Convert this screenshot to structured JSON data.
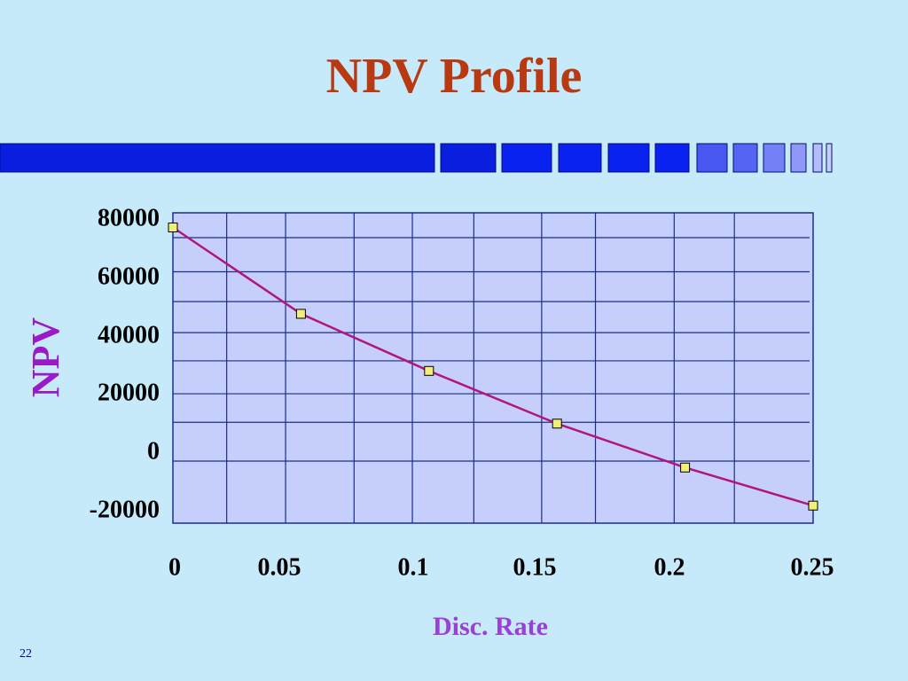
{
  "slide": {
    "title": "NPV Profile",
    "page_number": "22"
  },
  "colors": {
    "title": "#b83a12",
    "axis_title": "#9a19c9",
    "plot_background": "#c6cefc",
    "grid": "#1a2e8c",
    "line": "#b3167a",
    "marker_fill": "#f1ee7a",
    "decoration_primary": "#0a1ee0"
  },
  "chart_data": {
    "type": "line",
    "title": "",
    "xlabel": "Disc. Rate",
    "ylabel": "NPV",
    "x": [
      0,
      0.05,
      0.1,
      0.15,
      0.2,
      0.25
    ],
    "series": [
      {
        "values": [
          75000,
          45500,
          26000,
          8000,
          -7000,
          -20000
        ]
      }
    ],
    "x_ticks": [
      "0",
      "0.05",
      "0.1",
      "0.15",
      "0.2",
      "0.25"
    ],
    "y_ticks": [
      "80000",
      "60000",
      "40000",
      "20000",
      "0",
      "-20000"
    ],
    "xlim": [
      0,
      0.25
    ],
    "ylim": [
      -26000,
      80000
    ],
    "grid": true,
    "legend": "none",
    "marker": "square"
  }
}
